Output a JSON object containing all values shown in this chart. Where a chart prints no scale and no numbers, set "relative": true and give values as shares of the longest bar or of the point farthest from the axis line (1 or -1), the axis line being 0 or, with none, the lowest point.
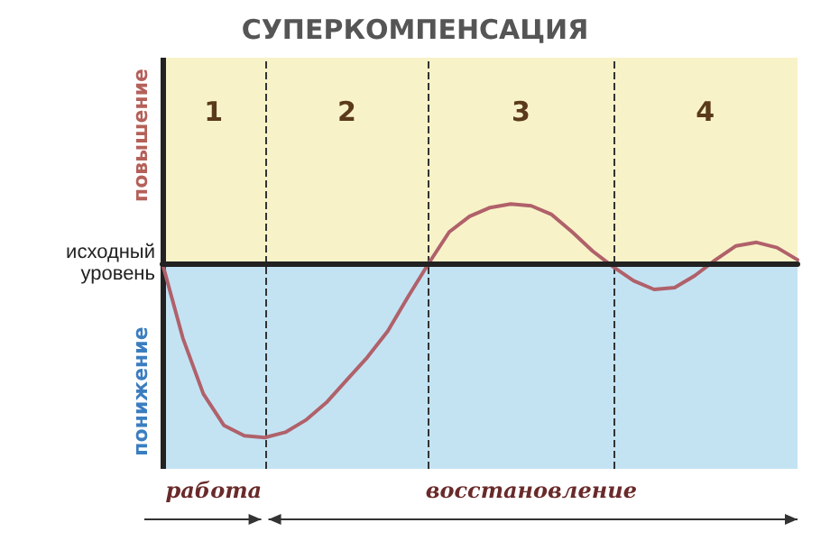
{
  "chart_data": {
    "type": "line",
    "title": "СУПЕРКОМПЕНСАЦИЯ",
    "relative": true,
    "color": "#b0616a",
    "categories": [
      null,
      null,
      null,
      null,
      null,
      null,
      null,
      null,
      null,
      null,
      null,
      null,
      null,
      null,
      null,
      null,
      null,
      null,
      null,
      null,
      null,
      null,
      null,
      null,
      null,
      null,
      null,
      null,
      null,
      null,
      null,
      null
    ],
    "values": [
      0,
      -0.43,
      -0.75,
      -0.93,
      -0.99,
      -1,
      -0.97,
      -0.9,
      -0.8,
      -0.67,
      -0.54,
      -0.39,
      -0.19,
      0,
      0.18,
      0.27,
      0.32,
      0.34,
      0.33,
      0.28,
      0.18,
      0.07,
      -0.02,
      -0.1,
      -0.15,
      -0.14,
      -0.07,
      0.02,
      0.1,
      0.12,
      0.09,
      0.02
    ],
    "grid": "x",
    "annotations": [
      "1",
      "2",
      "3",
      "4",
      "повышение",
      "понижение",
      "исходный уровень",
      "работа",
      "восстановление"
    ]
  }
}
